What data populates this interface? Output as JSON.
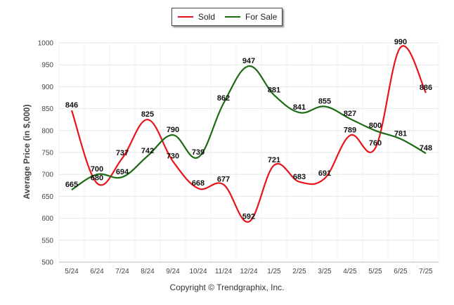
{
  "legend": {
    "sold": "Sold",
    "for_sale": "For Sale"
  },
  "copyright": "Copyright © Trendgraphix, Inc.",
  "chart_data": {
    "type": "line",
    "title": "",
    "xlabel": "",
    "ylabel": "Average Price (in $,000)",
    "ylim": [
      500,
      1000
    ],
    "yticks": [
      500,
      550,
      600,
      650,
      700,
      750,
      800,
      850,
      900,
      950,
      1000
    ],
    "grid": true,
    "legend_position": "top-center",
    "categories": [
      "5/24",
      "6/24",
      "7/24",
      "8/24",
      "9/24",
      "10/24",
      "11/24",
      "12/24",
      "1/25",
      "2/25",
      "3/25",
      "4/25",
      "5/25",
      "6/25",
      "7/25"
    ],
    "series": [
      {
        "name": "Sold",
        "color": "#e8141b",
        "values": [
          846,
          680,
          737,
          825,
          730,
          668,
          677,
          592,
          721,
          683,
          691,
          789,
          760,
          990,
          886
        ]
      },
      {
        "name": "For Sale",
        "color": "#1a6b12",
        "values": [
          665,
          700,
          694,
          742,
          790,
          739,
          862,
          947,
          881,
          841,
          855,
          827,
          800,
          781,
          748
        ]
      }
    ]
  }
}
